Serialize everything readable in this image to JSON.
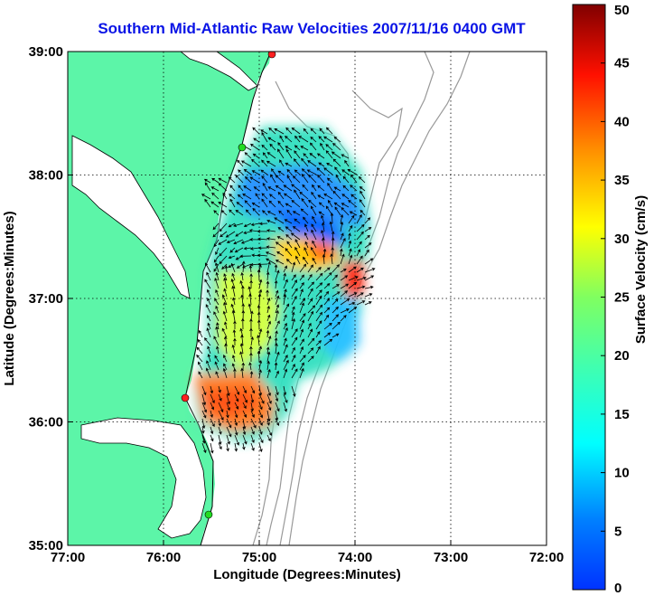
{
  "title": "Southern Mid-Atlantic Raw Velocities 2007/11/16 0400 GMT",
  "x_axis": {
    "label": "Longitude (Degrees:Minutes)",
    "ticks": [
      "77:00",
      "76:00",
      "75:00",
      "74:00",
      "73:00",
      "72:00"
    ],
    "range": [
      -77,
      -72
    ]
  },
  "y_axis": {
    "label": "Latitude (Degrees:Minutes)",
    "ticks": [
      "39:00",
      "38:00",
      "37:00",
      "36:00",
      "35:00"
    ],
    "range": [
      35,
      39
    ]
  },
  "colorbar": {
    "label": "Surface Velocity (cm/s)",
    "ticks": [
      "50",
      "45",
      "40",
      "35",
      "30",
      "25",
      "20",
      "15",
      "10",
      "5",
      "0"
    ],
    "range": [
      0,
      50
    ]
  },
  "colors": {
    "land": "#5cf5a8",
    "title": "#0a14e6",
    "bathymetry": "#999999",
    "station_red": "#ff2020",
    "station_green": "#22dd22"
  }
}
